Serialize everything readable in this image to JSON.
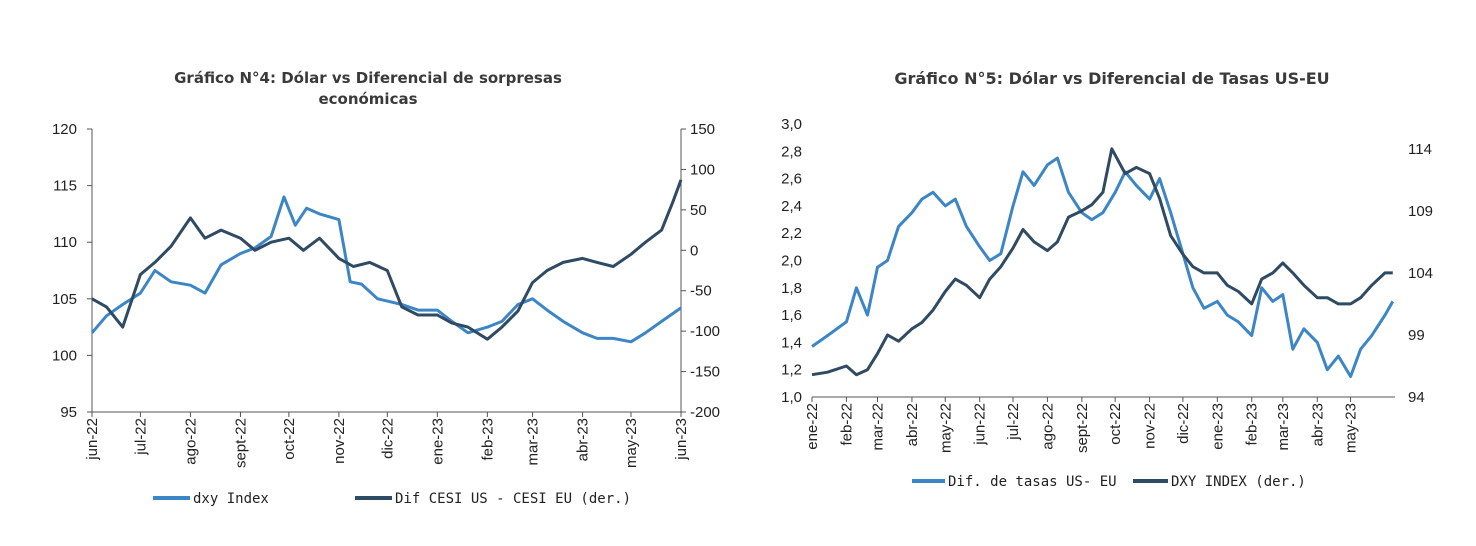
{
  "chart_data": [
    {
      "type": "line",
      "title_lines": [
        "Gráfico N°4: Dólar vs Diferencial de sorpresas",
        "económicas"
      ],
      "ylim": [
        95,
        120
      ],
      "yticks": [
        "120",
        "115",
        "110",
        "105",
        "100",
        "95"
      ],
      "y2lim": [
        -200,
        150
      ],
      "y2ticks": [
        "150",
        "100",
        "50",
        "0",
        "-50",
        "-100",
        "-150",
        "-200"
      ],
      "x_range": [
        "2022-06-01",
        "2023-06-01"
      ],
      "x_ticks": [
        {
          "label": "jun-22",
          "date": "2022-06-01"
        },
        {
          "label": "jul-22",
          "date": "2022-07-01"
        },
        {
          "label": "ago-22",
          "date": "2022-08-01"
        },
        {
          "label": "sept-22",
          "date": "2022-09-01"
        },
        {
          "label": "oct-22",
          "date": "2022-10-01"
        },
        {
          "label": "nov-22",
          "date": "2022-11-01"
        },
        {
          "label": "dic-22",
          "date": "2022-12-01"
        },
        {
          "label": "ene-23",
          "date": "2023-01-01"
        },
        {
          "label": "feb-23",
          "date": "2023-02-01"
        },
        {
          "label": "mar-23",
          "date": "2023-03-01"
        },
        {
          "label": "abr-23",
          "date": "2023-04-01"
        },
        {
          "label": "may-23",
          "date": "2023-05-01"
        },
        {
          "label": "jun-23",
          "date": "2023-06-01"
        }
      ],
      "series": [
        {
          "name": "dxy Index",
          "axis": "left",
          "color": "#3d86c6",
          "x": [
            "2022-06-01",
            "2022-06-10",
            "2022-06-20",
            "2022-07-01",
            "2022-07-10",
            "2022-07-20",
            "2022-08-01",
            "2022-08-10",
            "2022-08-20",
            "2022-09-01",
            "2022-09-10",
            "2022-09-20",
            "2022-09-28",
            "2022-10-05",
            "2022-10-12",
            "2022-10-20",
            "2022-11-01",
            "2022-11-08",
            "2022-11-15",
            "2022-11-25",
            "2022-12-01",
            "2022-12-10",
            "2022-12-20",
            "2023-01-01",
            "2023-01-10",
            "2023-01-20",
            "2023-02-01",
            "2023-02-10",
            "2023-02-20",
            "2023-03-01",
            "2023-03-10",
            "2023-03-20",
            "2023-04-01",
            "2023-04-10",
            "2023-04-20",
            "2023-05-01",
            "2023-05-10",
            "2023-05-20",
            "2023-06-01"
          ],
          "y": [
            102.0,
            103.5,
            104.5,
            105.5,
            107.5,
            106.5,
            106.2,
            105.5,
            108.0,
            109.0,
            109.5,
            110.5,
            114.0,
            111.5,
            113.0,
            112.5,
            112.0,
            106.5,
            106.3,
            105.0,
            104.8,
            104.5,
            104.0,
            104.0,
            103.0,
            102.0,
            102.5,
            103.0,
            104.5,
            105.0,
            104.0,
            103.0,
            102.0,
            101.5,
            101.5,
            101.2,
            102.0,
            103.0,
            104.2
          ]
        },
        {
          "name": "Dif CESI US - CESI EU (der.)",
          "axis": "right",
          "color": "#2f4a63",
          "x": [
            "2022-06-01",
            "2022-06-10",
            "2022-06-20",
            "2022-07-01",
            "2022-07-10",
            "2022-07-20",
            "2022-08-01",
            "2022-08-10",
            "2022-08-20",
            "2022-09-01",
            "2022-09-10",
            "2022-09-20",
            "2022-10-01",
            "2022-10-10",
            "2022-10-20",
            "2022-11-01",
            "2022-11-10",
            "2022-11-20",
            "2022-12-01",
            "2022-12-10",
            "2022-12-20",
            "2023-01-01",
            "2023-01-10",
            "2023-01-20",
            "2023-02-01",
            "2023-02-10",
            "2023-02-20",
            "2023-03-01",
            "2023-03-10",
            "2023-03-20",
            "2023-04-01",
            "2023-04-10",
            "2023-04-20",
            "2023-05-01",
            "2023-05-10",
            "2023-05-20",
            "2023-05-27",
            "2023-06-01"
          ],
          "y": [
            -60,
            -70,
            -95,
            -30,
            -15,
            5,
            40,
            15,
            25,
            15,
            0,
            10,
            15,
            0,
            15,
            -10,
            -20,
            -15,
            -25,
            -70,
            -80,
            -80,
            -90,
            -95,
            -110,
            -95,
            -75,
            -40,
            -25,
            -15,
            -10,
            -15,
            -20,
            -5,
            10,
            25,
            60,
            87
          ]
        }
      ],
      "legend_position": "bottom"
    },
    {
      "type": "line",
      "title": "Gráfico N°5: Dólar vs Diferencial de Tasas US-EU",
      "ylim": [
        1.0,
        3.0
      ],
      "yticks": [
        "3,0",
        "2,8",
        "2,6",
        "2,4",
        "2,2",
        "2,0",
        "1,8",
        "1,6",
        "1,4",
        "1,2",
        "1,0"
      ],
      "y2lim": [
        94,
        116
      ],
      "y2ticks": [
        "114",
        "109",
        "104",
        "99",
        "94"
      ],
      "x_range": [
        "2022-01-01",
        "2023-06-10"
      ],
      "x_ticks": [
        {
          "label": "ene-22",
          "date": "2022-01-01"
        },
        {
          "label": "feb-22",
          "date": "2022-02-01"
        },
        {
          "label": "mar-22",
          "date": "2022-03-01"
        },
        {
          "label": "abr-22",
          "date": "2022-04-01"
        },
        {
          "label": "may-22",
          "date": "2022-05-01"
        },
        {
          "label": "jun-22",
          "date": "2022-06-01"
        },
        {
          "label": "jul-22",
          "date": "2022-07-01"
        },
        {
          "label": "ago-22",
          "date": "2022-08-01"
        },
        {
          "label": "sept-22",
          "date": "2022-09-01"
        },
        {
          "label": "oct-22",
          "date": "2022-10-01"
        },
        {
          "label": "nov-22",
          "date": "2022-11-01"
        },
        {
          "label": "dic-22",
          "date": "2022-12-01"
        },
        {
          "label": "ene-23",
          "date": "2023-01-01"
        },
        {
          "label": "feb-23",
          "date": "2023-02-01"
        },
        {
          "label": "mar-23",
          "date": "2023-03-01"
        },
        {
          "label": "abr-23",
          "date": "2023-04-01"
        },
        {
          "label": "may-23",
          "date": "2023-05-01"
        }
      ],
      "series": [
        {
          "name": "Dif. de tasas US- EU",
          "axis": "left",
          "color": "#3d86c6",
          "x": [
            "2022-01-01",
            "2022-01-15",
            "2022-02-01",
            "2022-02-10",
            "2022-02-20",
            "2022-03-01",
            "2022-03-10",
            "2022-03-20",
            "2022-04-01",
            "2022-04-10",
            "2022-04-20",
            "2022-05-01",
            "2022-05-10",
            "2022-05-20",
            "2022-06-01",
            "2022-06-10",
            "2022-06-20",
            "2022-07-01",
            "2022-07-10",
            "2022-07-20",
            "2022-08-01",
            "2022-08-10",
            "2022-08-20",
            "2022-09-01",
            "2022-09-10",
            "2022-09-20",
            "2022-10-01",
            "2022-10-10",
            "2022-10-20",
            "2022-11-01",
            "2022-11-10",
            "2022-11-20",
            "2022-12-01",
            "2022-12-10",
            "2022-12-20",
            "2023-01-01",
            "2023-01-10",
            "2023-01-20",
            "2023-02-01",
            "2023-02-10",
            "2023-02-20",
            "2023-03-01",
            "2023-03-10",
            "2023-03-20",
            "2023-04-01",
            "2023-04-10",
            "2023-04-20",
            "2023-05-01",
            "2023-05-10",
            "2023-05-20",
            "2023-06-01",
            "2023-06-08"
          ],
          "y": [
            1.37,
            1.45,
            1.55,
            1.8,
            1.6,
            1.95,
            2.0,
            2.25,
            2.35,
            2.45,
            2.5,
            2.4,
            2.45,
            2.25,
            2.1,
            2.0,
            2.05,
            2.4,
            2.65,
            2.55,
            2.7,
            2.75,
            2.5,
            2.35,
            2.3,
            2.35,
            2.5,
            2.65,
            2.55,
            2.45,
            2.6,
            2.35,
            2.05,
            1.8,
            1.65,
            1.7,
            1.6,
            1.55,
            1.45,
            1.8,
            1.7,
            1.75,
            1.35,
            1.5,
            1.4,
            1.2,
            1.3,
            1.15,
            1.35,
            1.45,
            1.6,
            1.7
          ]
        },
        {
          "name": "DXY INDEX (der.)",
          "axis": "right",
          "color": "#2f4a63",
          "x": [
            "2022-01-01",
            "2022-01-15",
            "2022-02-01",
            "2022-02-10",
            "2022-02-20",
            "2022-03-01",
            "2022-03-10",
            "2022-03-20",
            "2022-04-01",
            "2022-04-10",
            "2022-04-20",
            "2022-05-01",
            "2022-05-10",
            "2022-05-20",
            "2022-06-01",
            "2022-06-10",
            "2022-06-20",
            "2022-07-01",
            "2022-07-10",
            "2022-07-20",
            "2022-08-01",
            "2022-08-10",
            "2022-08-20",
            "2022-09-01",
            "2022-09-10",
            "2022-09-20",
            "2022-09-28",
            "2022-10-10",
            "2022-10-20",
            "2022-11-01",
            "2022-11-10",
            "2022-11-20",
            "2022-12-01",
            "2022-12-10",
            "2022-12-20",
            "2023-01-01",
            "2023-01-10",
            "2023-01-20",
            "2023-02-01",
            "2023-02-10",
            "2023-02-20",
            "2023-03-01",
            "2023-03-10",
            "2023-03-20",
            "2023-04-01",
            "2023-04-10",
            "2023-04-20",
            "2023-05-01",
            "2023-05-10",
            "2023-05-20",
            "2023-06-01",
            "2023-06-08"
          ],
          "y": [
            95.8,
            96.0,
            96.5,
            95.8,
            96.2,
            97.5,
            99.0,
            98.5,
            99.5,
            100.0,
            101.0,
            102.5,
            103.5,
            103.0,
            102.0,
            103.5,
            104.5,
            106.0,
            107.5,
            106.5,
            105.8,
            106.5,
            108.5,
            109.0,
            109.5,
            110.5,
            114.0,
            112.0,
            112.5,
            112.0,
            110.0,
            107.0,
            105.5,
            104.5,
            104.0,
            104.0,
            103.0,
            102.5,
            101.5,
            103.5,
            104.0,
            104.8,
            104.0,
            103.0,
            102.0,
            102.0,
            101.5,
            101.5,
            102.0,
            103.0,
            104.0,
            104.0
          ]
        }
      ],
      "legend_position": "bottom"
    }
  ]
}
